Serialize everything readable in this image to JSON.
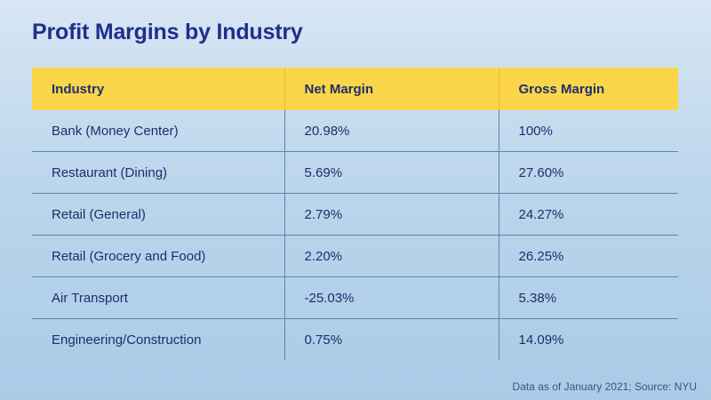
{
  "title": "Profit Margins by Industry",
  "source": "Data as of January 2021; Source: NYU",
  "chart_data": {
    "type": "table",
    "title": "Profit Margins by Industry",
    "columns": [
      "Industry",
      "Net Margin",
      "Gross Margin"
    ],
    "rows": [
      [
        "Bank (Money Center)",
        "20.98%",
        "100%"
      ],
      [
        "Restaurant (Dining)",
        "5.69%",
        "27.60%"
      ],
      [
        "Retail (General)",
        "2.79%",
        "24.27%"
      ],
      [
        "Retail (Grocery and Food)",
        "2.20%",
        "26.25%"
      ],
      [
        "Air Transport",
        "-25.03%",
        "5.38%"
      ],
      [
        "Engineering/Construction",
        "0.75%",
        "14.09%"
      ]
    ],
    "colors": {
      "header_bg": "#fbd54a",
      "title": "#1f2f8c",
      "text": "#1e2d6e",
      "grid": "#5f83ad"
    }
  }
}
